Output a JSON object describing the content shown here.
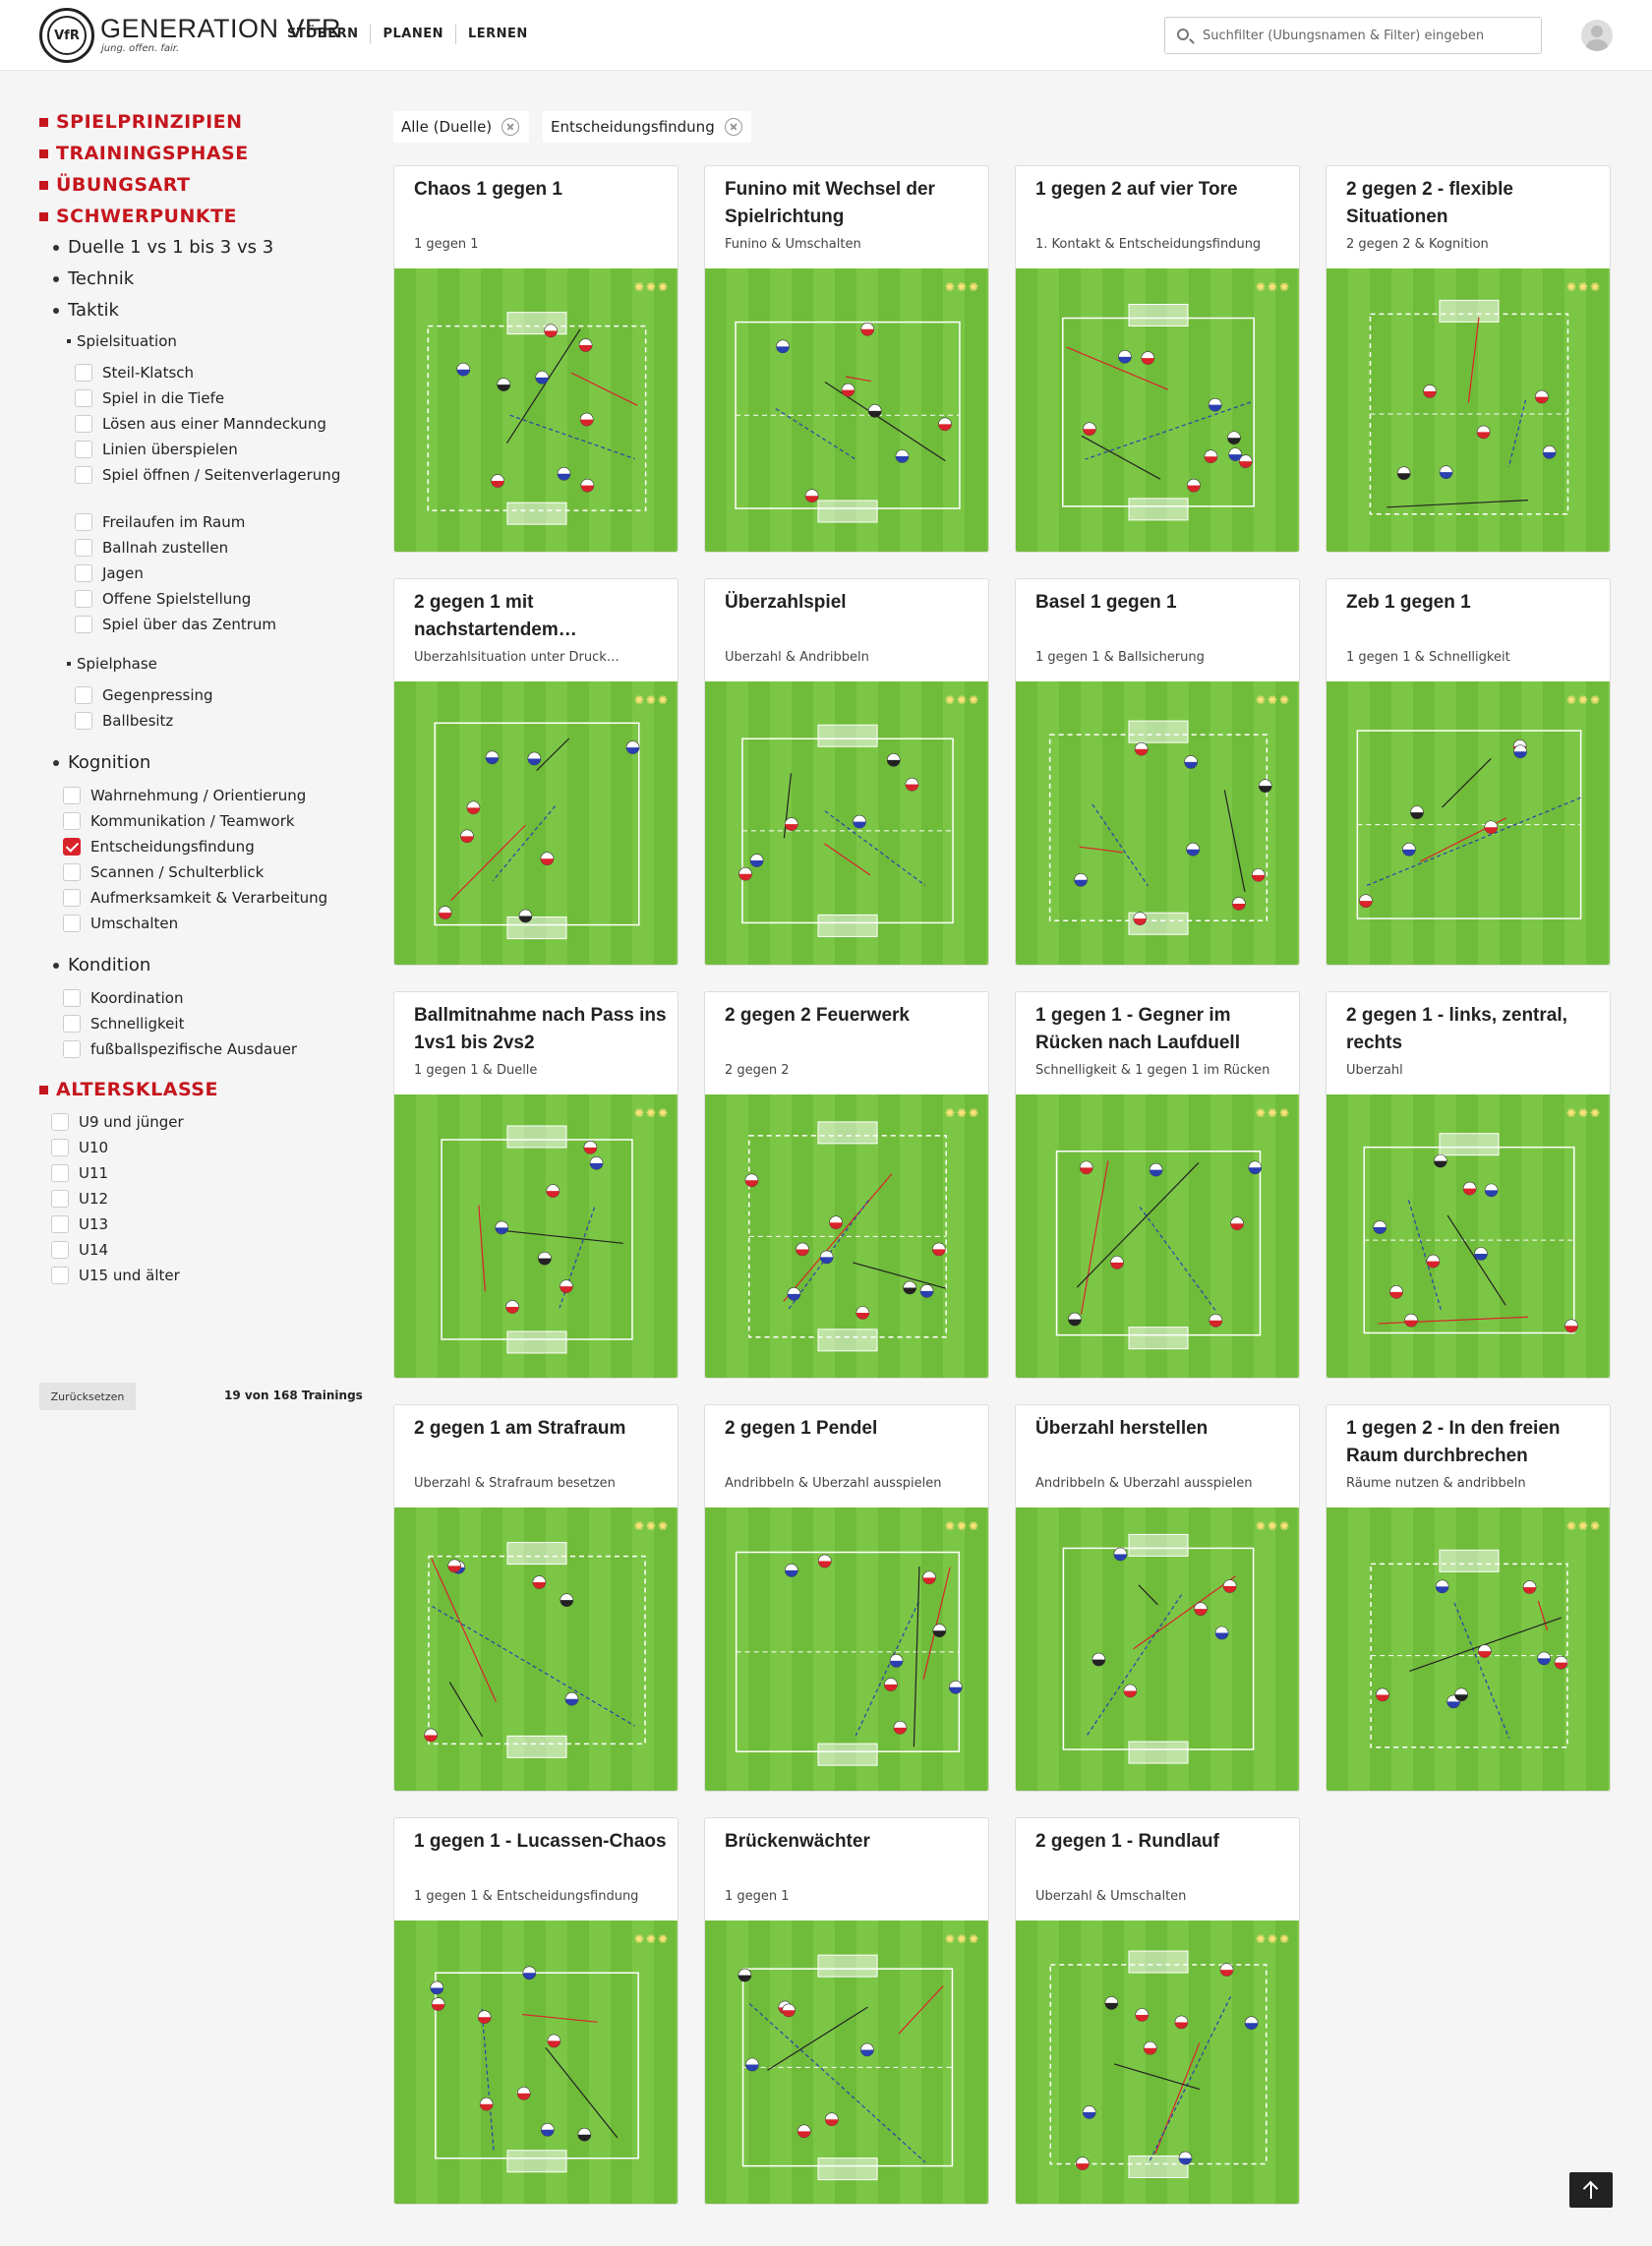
{
  "header": {
    "brand": "GENERATION VFR",
    "tagline": "jung. offen. fair.",
    "logo_text": "VfR",
    "nav": [
      "STÖBERN",
      "PLANEN",
      "LERNEN"
    ],
    "search_placeholder": "Suchfilter (Übungsnamen & Filter) eingeben"
  },
  "sidebar": {
    "categories": {
      "spielprinzipien": "SPIELPRINZIPIEN",
      "trainingsphase": "TRAININGSPHASE",
      "uebungsart": "ÜBUNGSART",
      "schwerpunkte": "SCHWERPUNKTE",
      "altersklasse": "ALTERSKLASSE"
    },
    "duelle": "Duelle 1 vs 1 bis 3 vs 3",
    "technik": "Technik",
    "taktik": "Taktik",
    "spielsituation": "Spielsituation",
    "spielsituation_items": [
      "Steil-Klatsch",
      "Spiel in die Tiefe",
      "Lösen aus einer Manndeckung",
      "Linien überspielen",
      "Spiel öffnen / Seitenverlagerung",
      "Freilaufen im Raum",
      "Ballnah zustellen",
      "Jagen",
      "Offene Spielstellung",
      "Spiel über das Zentrum"
    ],
    "spielphase": "Spielphase",
    "spielphase_items": [
      "Gegenpressing",
      "Ballbesitz"
    ],
    "kognition": "Kognition",
    "kognition_items": [
      "Wahrnehmung / Orientierung",
      "Kommunikation / Teamwork",
      "Entscheidungsfindung",
      "Scannen / Schulterblick",
      "Aufmerksamkeit & Verarbeitung",
      "Umschalten"
    ],
    "kognition_checked": "Entscheidungsfindung",
    "kondition": "Kondition",
    "kondition_items": [
      "Koordination",
      "Schnelligkeit",
      "fußballspezifische Ausdauer"
    ],
    "alters_items": [
      "U9 und jünger",
      "U10",
      "U11",
      "U12",
      "U13",
      "U14",
      "U15 und älter"
    ],
    "reset_label": "Zurücksetzen",
    "count": "19 von 168 Trainings"
  },
  "chips": [
    "Alle (Duelle)",
    "Entscheidungsfindung"
  ],
  "cards": [
    {
      "title": "Chaos 1 gegen 1",
      "sub": "1 gegen 1"
    },
    {
      "title": "Funino mit Wechsel der Spielrichtung",
      "sub": "Funino & Umschalten"
    },
    {
      "title": "1 gegen 2 auf vier Tore",
      "sub": "1. Kontakt & Entscheidungsfindung"
    },
    {
      "title": "2 gegen 2 - flexible Situationen",
      "sub": "2 gegen 2 & Kognition"
    },
    {
      "title": "2 gegen 1 mit nachstartendem…",
      "sub": "Überzahlsituation unter Druck…"
    },
    {
      "title": "Überzahlspiel",
      "sub": "Überzahl & Andribbeln"
    },
    {
      "title": "Basel 1 gegen 1",
      "sub": "1 gegen 1 & Ballsicherung"
    },
    {
      "title": "Zeb 1 gegen 1",
      "sub": "1 gegen 1 & Schnelligkeit"
    },
    {
      "title": "Ballmitnahme nach Pass ins 1vs1 bis 2vs2",
      "sub": "1 gegen 1 & Duelle"
    },
    {
      "title": "2 gegen 2 Feuerwerk",
      "sub": "2 gegen 2"
    },
    {
      "title": "1 gegen 1 - Gegner im Rücken nach Laufduell",
      "sub": "Schnelligkeit & 1 gegen 1 im Rücken"
    },
    {
      "title": "2 gegen 1 - links, zentral, rechts",
      "sub": "Überzahl"
    },
    {
      "title": "2 gegen 1 am Strafraum",
      "sub": "Überzahl & Strafraum besetzen"
    },
    {
      "title": "2 gegen 1 Pendel",
      "sub": "Andribbeln & Überzahl ausspielen"
    },
    {
      "title": "Überzahl herstellen",
      "sub": "Andribbeln & Überzahl ausspielen"
    },
    {
      "title": "1 gegen 2 - In den freien Raum durchbrechen",
      "sub": "Räume nutzen & andribbeln"
    },
    {
      "title": "1 gegen 1 - Lucassen-Chaos",
      "sub": "1 gegen 1 & Entscheidungsfindung"
    },
    {
      "title": "Brückenwächter",
      "sub": "1 gegen 1"
    },
    {
      "title": "2 gegen 1 - Rundlauf",
      "sub": "Überzahl & Umschalten"
    }
  ],
  "colors": {
    "accent": "#c5161d",
    "pitch": "#6fbb3a"
  }
}
